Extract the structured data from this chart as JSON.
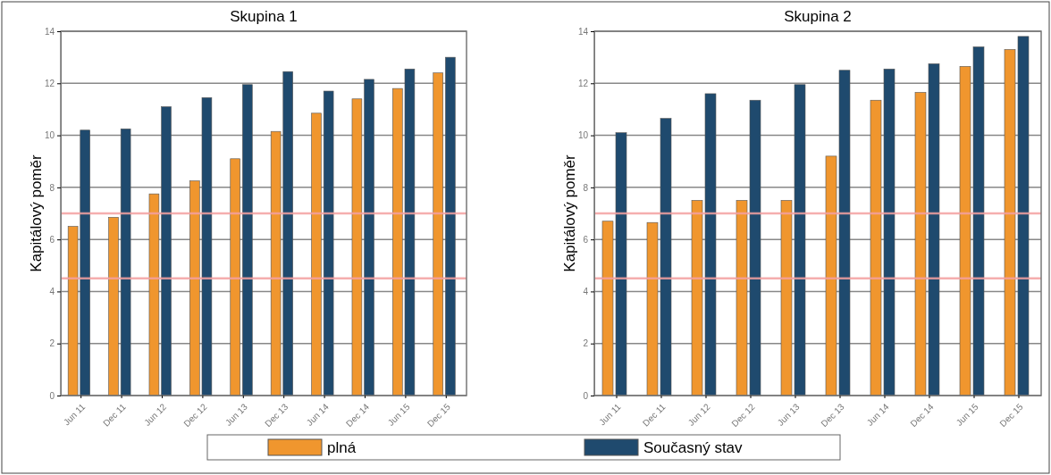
{
  "chart_data": [
    {
      "type": "bar",
      "title": "Skupina 1",
      "ylabel": "Kapitálový poměr",
      "categories": [
        "Jun 11",
        "Dec 11",
        "Jun 12",
        "Dec 12",
        "Jun 13",
        "Dec 13",
        "Jun 14",
        "Dec 14",
        "Jun 15",
        "Dec 15"
      ],
      "series": [
        {
          "name": "plná",
          "color": "#f0962e",
          "values": [
            6.5,
            6.85,
            7.75,
            8.25,
            9.1,
            10.15,
            10.85,
            11.4,
            11.8,
            12.4
          ]
        },
        {
          "name": "Současný stav",
          "color": "#1f4a6e",
          "values": [
            10.2,
            10.25,
            11.1,
            11.45,
            11.95,
            12.45,
            11.7,
            12.15,
            12.55,
            13.0
          ]
        }
      ],
      "ylim": [
        0,
        14
      ],
      "yticks": [
        0,
        2,
        4,
        6,
        8,
        10,
        12,
        14
      ],
      "grid": "y",
      "legend": "bottom",
      "ref_lines": [
        {
          "axis": "y",
          "value": 7,
          "color": "#f4a0a0"
        },
        {
          "axis": "y",
          "value": 4.5,
          "color": "#f4a0a0"
        }
      ]
    },
    {
      "type": "bar",
      "title": "Skupina 2",
      "ylabel": "Kapitálový poměr",
      "categories": [
        "Jun 11",
        "Dec 11",
        "Jun 12",
        "Dec 12",
        "Jun 13",
        "Dec 13",
        "Jun 14",
        "Dec 14",
        "Jun 15",
        "Dec 15"
      ],
      "series": [
        {
          "color": "#f0962e",
          "values": [
            6.7,
            6.65,
            7.5,
            7.5,
            7.5,
            9.2,
            11.35,
            11.65,
            12.65,
            13.3
          ]
        },
        {
          "color": "#1f4a6e",
          "values": [
            10.1,
            10.65,
            11.6,
            11.35,
            11.95,
            12.5,
            12.55,
            12.75,
            13.4,
            13.8
          ]
        }
      ],
      "ylim": [
        0,
        14
      ],
      "yticks": [
        0,
        2,
        4,
        6,
        8,
        10,
        12,
        14
      ],
      "grid": "y",
      "ref_lines": [
        {
          "axis": "y",
          "value": 7,
          "color": "#f4a0a0"
        },
        {
          "axis": "y",
          "value": 4.5,
          "color": "#f4a0a0"
        }
      ]
    }
  ]
}
